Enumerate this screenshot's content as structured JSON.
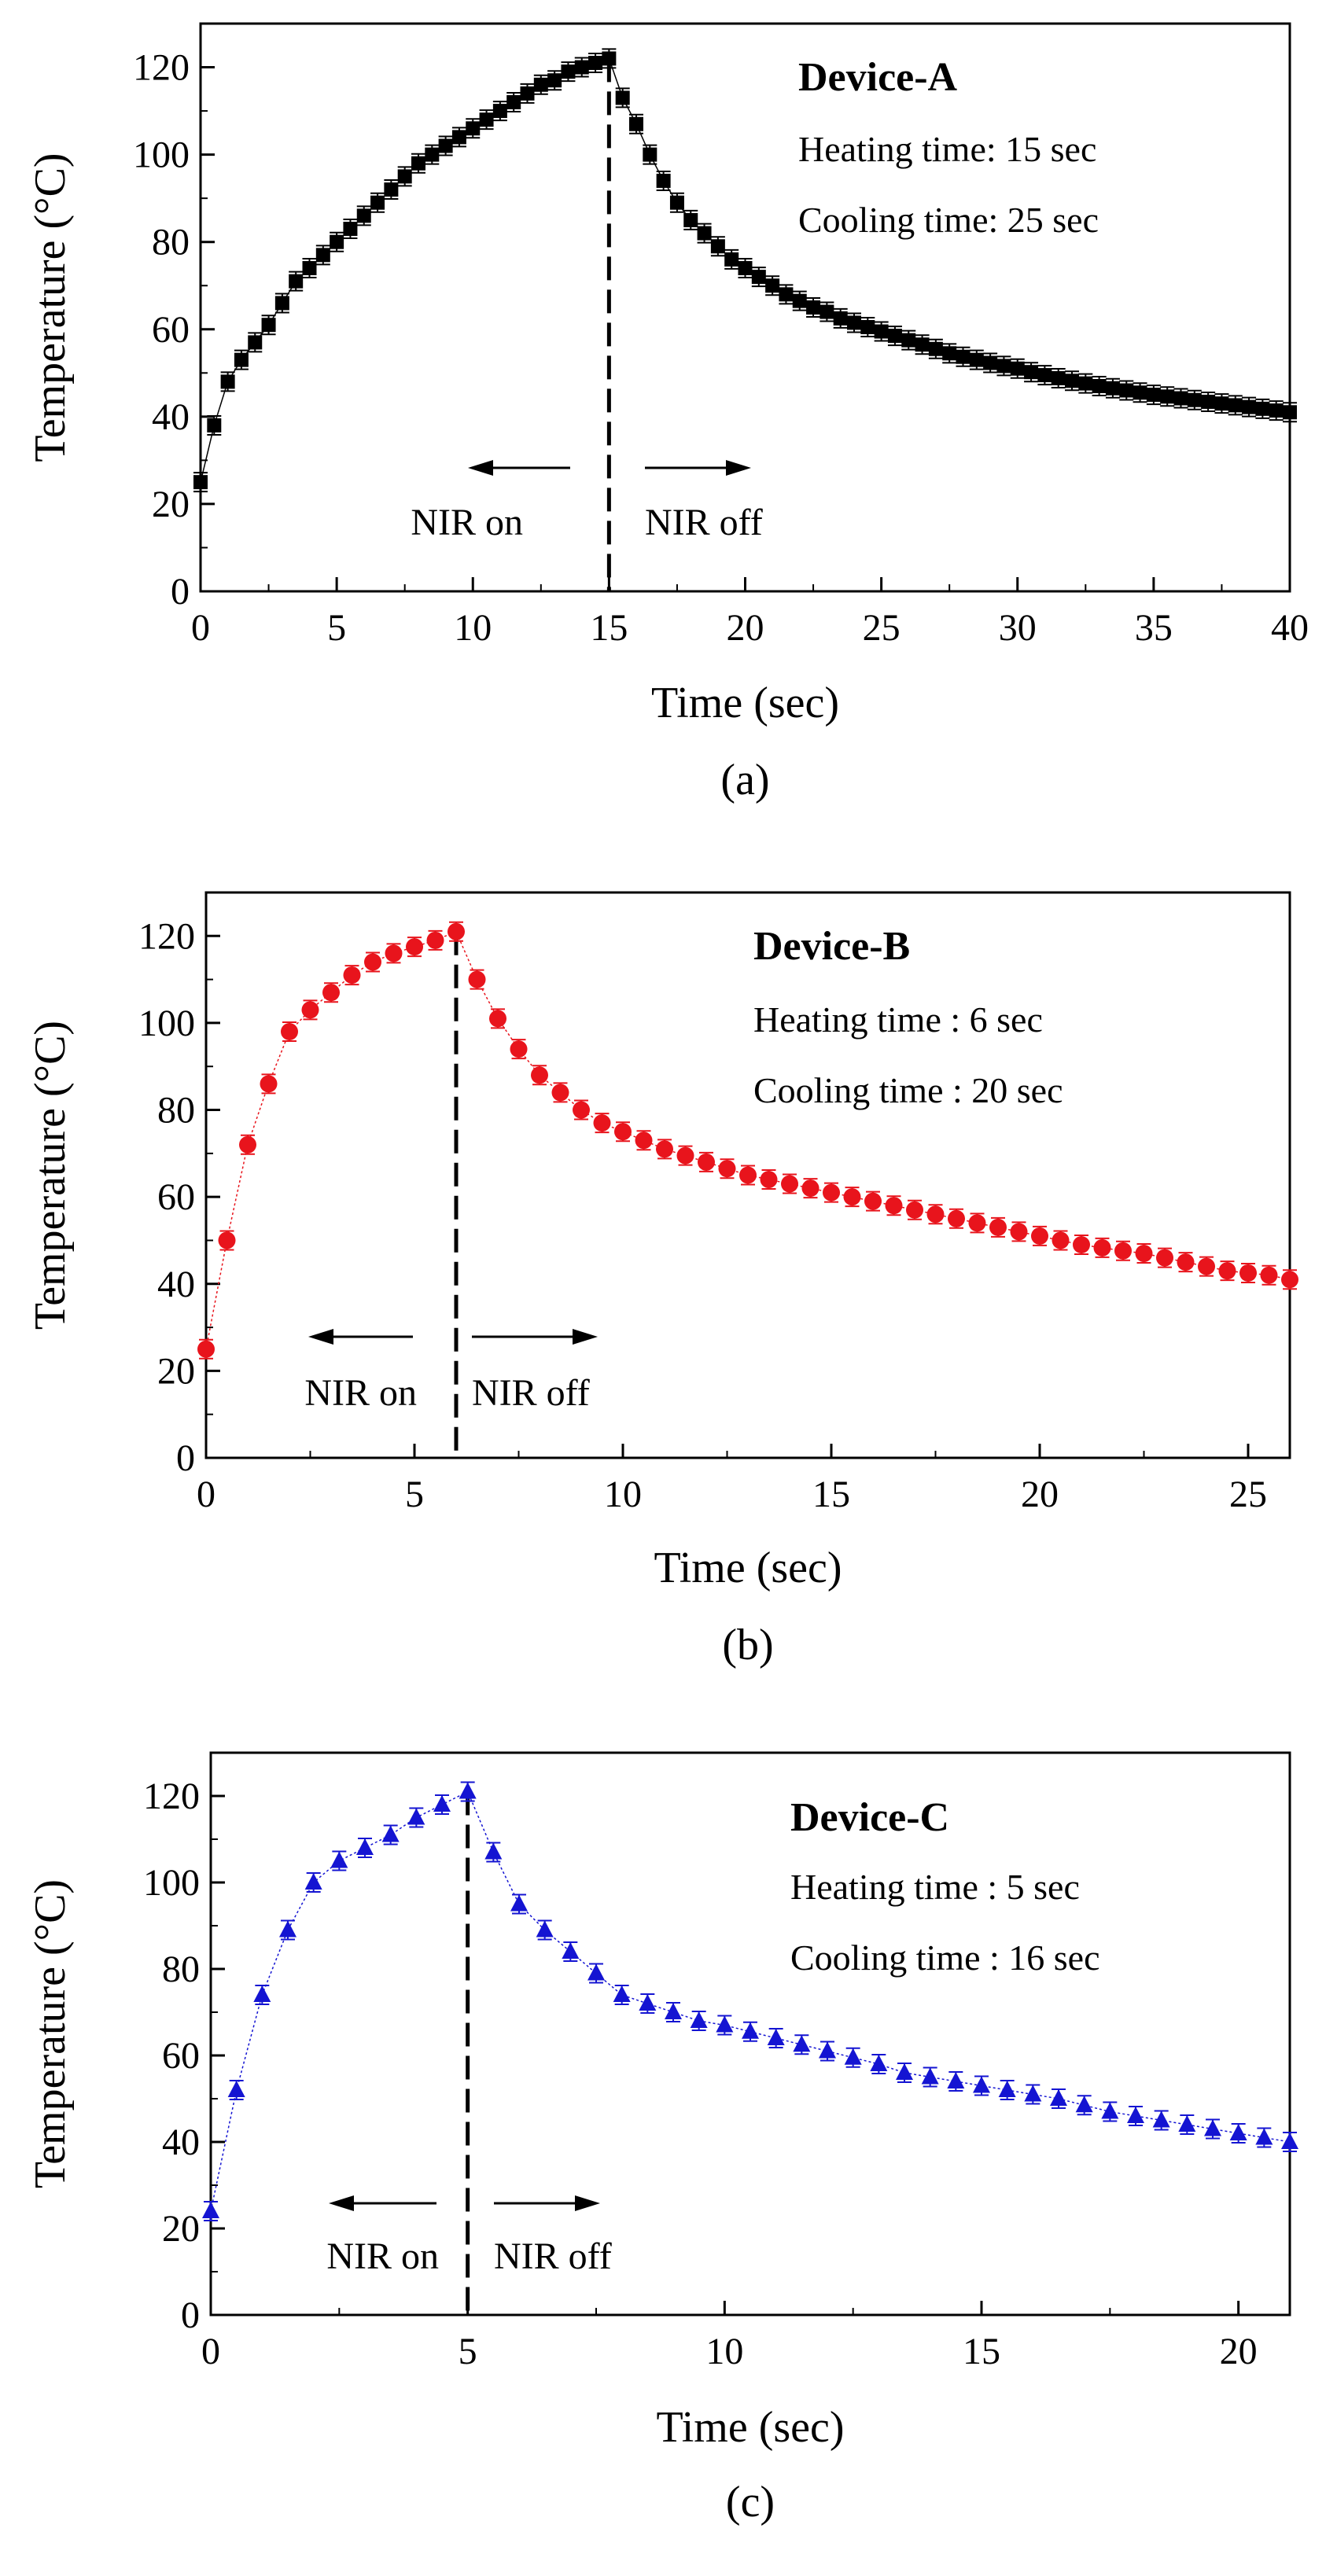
{
  "chart_data": [
    {
      "type": "line",
      "panel_label": "(a)",
      "device": "Device-A",
      "info_heating": "Heating time: 15 sec",
      "info_cooling": "Cooling time: 25 sec",
      "nir_on": "NIR on",
      "nir_off": "NIR off",
      "switch_time": 15,
      "xlabel": "Time (sec)",
      "ylabel": "Temperature (°C)",
      "xlim": [
        0,
        40
      ],
      "ylim": [
        0,
        130
      ],
      "xticks": [
        0,
        5,
        10,
        15,
        20,
        25,
        30,
        35,
        40
      ],
      "yticks": [
        0,
        20,
        40,
        60,
        80,
        100,
        120
      ],
      "marker": "square",
      "color": "#000000",
      "series": [
        {
          "name": "Device-A",
          "x": [
            0,
            0.5,
            1,
            1.5,
            2,
            2.5,
            3,
            3.5,
            4,
            4.5,
            5,
            5.5,
            6,
            6.5,
            7,
            7.5,
            8,
            8.5,
            9,
            9.5,
            10,
            10.5,
            11,
            11.5,
            12,
            12.5,
            13,
            13.5,
            14,
            14.5,
            15,
            15.5,
            16,
            16.5,
            17,
            17.5,
            18,
            18.5,
            19,
            19.5,
            20,
            20.5,
            21,
            21.5,
            22,
            22.5,
            23,
            23.5,
            24,
            24.5,
            25,
            25.5,
            26,
            26.5,
            27,
            27.5,
            28,
            28.5,
            29,
            29.5,
            30,
            30.5,
            31,
            31.5,
            32,
            32.5,
            33,
            33.5,
            34,
            34.5,
            35,
            35.5,
            36,
            36.5,
            37,
            37.5,
            38,
            38.5,
            39,
            39.5,
            40
          ],
          "y": [
            25,
            38,
            48,
            53,
            57,
            61,
            66,
            71,
            74,
            77,
            80,
            83,
            86,
            89,
            92,
            95,
            98,
            100,
            102,
            104,
            106,
            108,
            110,
            112,
            114,
            116,
            117,
            119,
            120,
            121,
            122,
            113,
            107,
            100,
            94,
            89,
            85,
            82,
            79,
            76,
            74,
            72,
            70,
            68,
            66.5,
            65,
            64,
            62.5,
            61.5,
            60.5,
            59.5,
            58.5,
            57.5,
            56.5,
            55.5,
            54.5,
            53.7,
            53,
            52.3,
            51.6,
            51,
            50.2,
            49.5,
            48.8,
            48.2,
            47.6,
            47,
            46.5,
            46,
            45.5,
            45,
            44.6,
            44.2,
            43.8,
            43.4,
            43,
            42.6,
            42.2,
            41.8,
            41.4,
            41
          ]
        }
      ]
    },
    {
      "type": "line",
      "panel_label": "(b)",
      "device": "Device-B",
      "info_heating": "Heating time : 6 sec",
      "info_cooling": "Cooling time : 20 sec",
      "nir_on": "NIR on",
      "nir_off": "NIR off",
      "switch_time": 6,
      "xlabel": "Time (sec)",
      "ylabel": "Temperature (°C)",
      "xlim": [
        0,
        26
      ],
      "ylim": [
        0,
        130
      ],
      "xticks": [
        0,
        5,
        10,
        15,
        20,
        25
      ],
      "yticks": [
        0,
        20,
        40,
        60,
        80,
        100,
        120
      ],
      "marker": "circle",
      "color": "#e8141c",
      "series": [
        {
          "name": "Device-B",
          "x": [
            0,
            0.5,
            1,
            1.5,
            2,
            2.5,
            3,
            3.5,
            4,
            4.5,
            5,
            5.5,
            6,
            6.5,
            7,
            7.5,
            8,
            8.5,
            9,
            9.5,
            10,
            10.5,
            11,
            11.5,
            12,
            12.5,
            13,
            13.5,
            14,
            14.5,
            15,
            15.5,
            16,
            16.5,
            17,
            17.5,
            18,
            18.5,
            19,
            19.5,
            20,
            20.5,
            21,
            21.5,
            22,
            22.5,
            23,
            23.5,
            24,
            24.5,
            25,
            25.5,
            26
          ],
          "y": [
            25,
            50,
            72,
            86,
            98,
            103,
            107,
            111,
            114,
            116,
            117.5,
            119,
            121,
            110,
            101,
            94,
            88,
            84,
            80,
            77,
            75,
            73,
            71,
            69.5,
            68,
            66.5,
            65,
            64,
            63,
            62,
            61,
            60,
            59,
            58,
            57,
            56,
            55,
            54,
            53,
            52,
            51,
            50,
            49,
            48.3,
            47.6,
            47,
            46,
            45,
            44,
            43,
            42.5,
            42,
            41
          ]
        }
      ]
    },
    {
      "type": "line",
      "panel_label": "(c)",
      "device": "Device-C",
      "info_heating": "Heating time : 5 sec",
      "info_cooling": "Cooling time : 16 sec",
      "nir_on": "NIR on",
      "nir_off": "NIR off",
      "switch_time": 5,
      "xlabel": "Time (sec)",
      "ylabel": "Temperature (°C)",
      "xlim": [
        0,
        21
      ],
      "ylim": [
        0,
        130
      ],
      "xticks": [
        0,
        5,
        10,
        15,
        20
      ],
      "yticks": [
        0,
        20,
        40,
        60,
        80,
        100,
        120
      ],
      "marker": "triangle",
      "color": "#1414d2",
      "series": [
        {
          "name": "Device-C",
          "x": [
            0,
            0.5,
            1,
            1.5,
            2,
            2.5,
            3,
            3.5,
            4,
            4.5,
            5,
            5.5,
            6,
            6.5,
            7,
            7.5,
            8,
            8.5,
            9,
            9.5,
            10,
            10.5,
            11,
            11.5,
            12,
            12.5,
            13,
            13.5,
            14,
            14.5,
            15,
            15.5,
            16,
            16.5,
            17,
            17.5,
            18,
            18.5,
            19,
            19.5,
            20,
            20.5,
            21
          ],
          "y": [
            24,
            52,
            74,
            89,
            100,
            105,
            108,
            111,
            115,
            118,
            121,
            107,
            95,
            89,
            84,
            79,
            74,
            72,
            70,
            68,
            67,
            65.5,
            64,
            62.5,
            61,
            59.5,
            58,
            56,
            55,
            54,
            53,
            52,
            51,
            50,
            48.5,
            47,
            46,
            45,
            44,
            43,
            42,
            41,
            40
          ]
        }
      ]
    }
  ]
}
